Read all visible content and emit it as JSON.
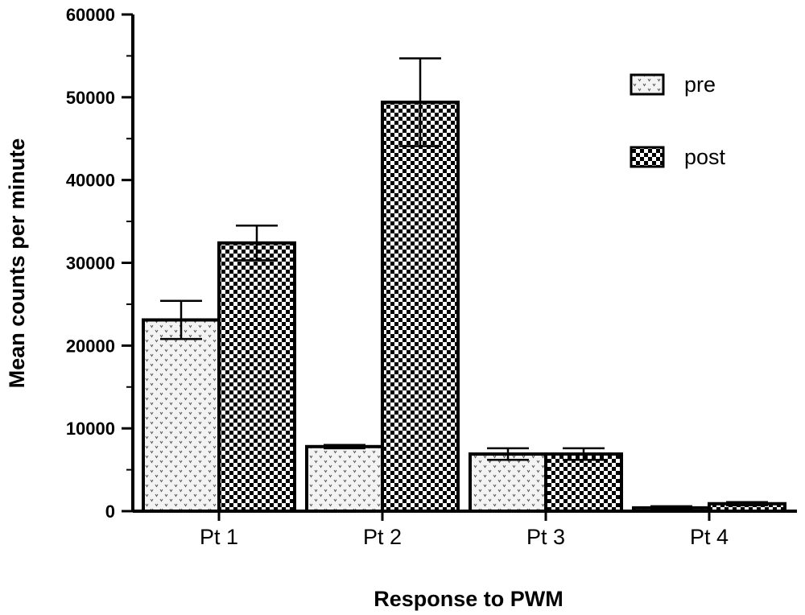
{
  "chart_data": {
    "type": "bar",
    "title": "",
    "xlabel": "Response to PWM",
    "ylabel": "Mean counts per minute",
    "ylim": [
      0,
      60000
    ],
    "yticks": [
      0,
      10000,
      20000,
      30000,
      40000,
      50000,
      60000
    ],
    "categories": [
      "Pt 1",
      "Pt 2",
      "Pt 3",
      "Pt 4"
    ],
    "series": [
      {
        "name": "pre",
        "pattern": "light-dotted",
        "values": [
          23100,
          7800,
          6900,
          400
        ],
        "errors": [
          2300,
          200,
          700,
          200
        ]
      },
      {
        "name": "post",
        "pattern": "checkerboard",
        "values": [
          32400,
          49400,
          6900,
          900
        ],
        "errors": [
          2100,
          5300,
          700,
          200
        ]
      }
    ],
    "legend_position": "top-right",
    "grid": false,
    "colors": {
      "bar_stroke": "#000000",
      "pre_fill": "#f2f2f2",
      "post_fill": "#ffffff"
    }
  }
}
